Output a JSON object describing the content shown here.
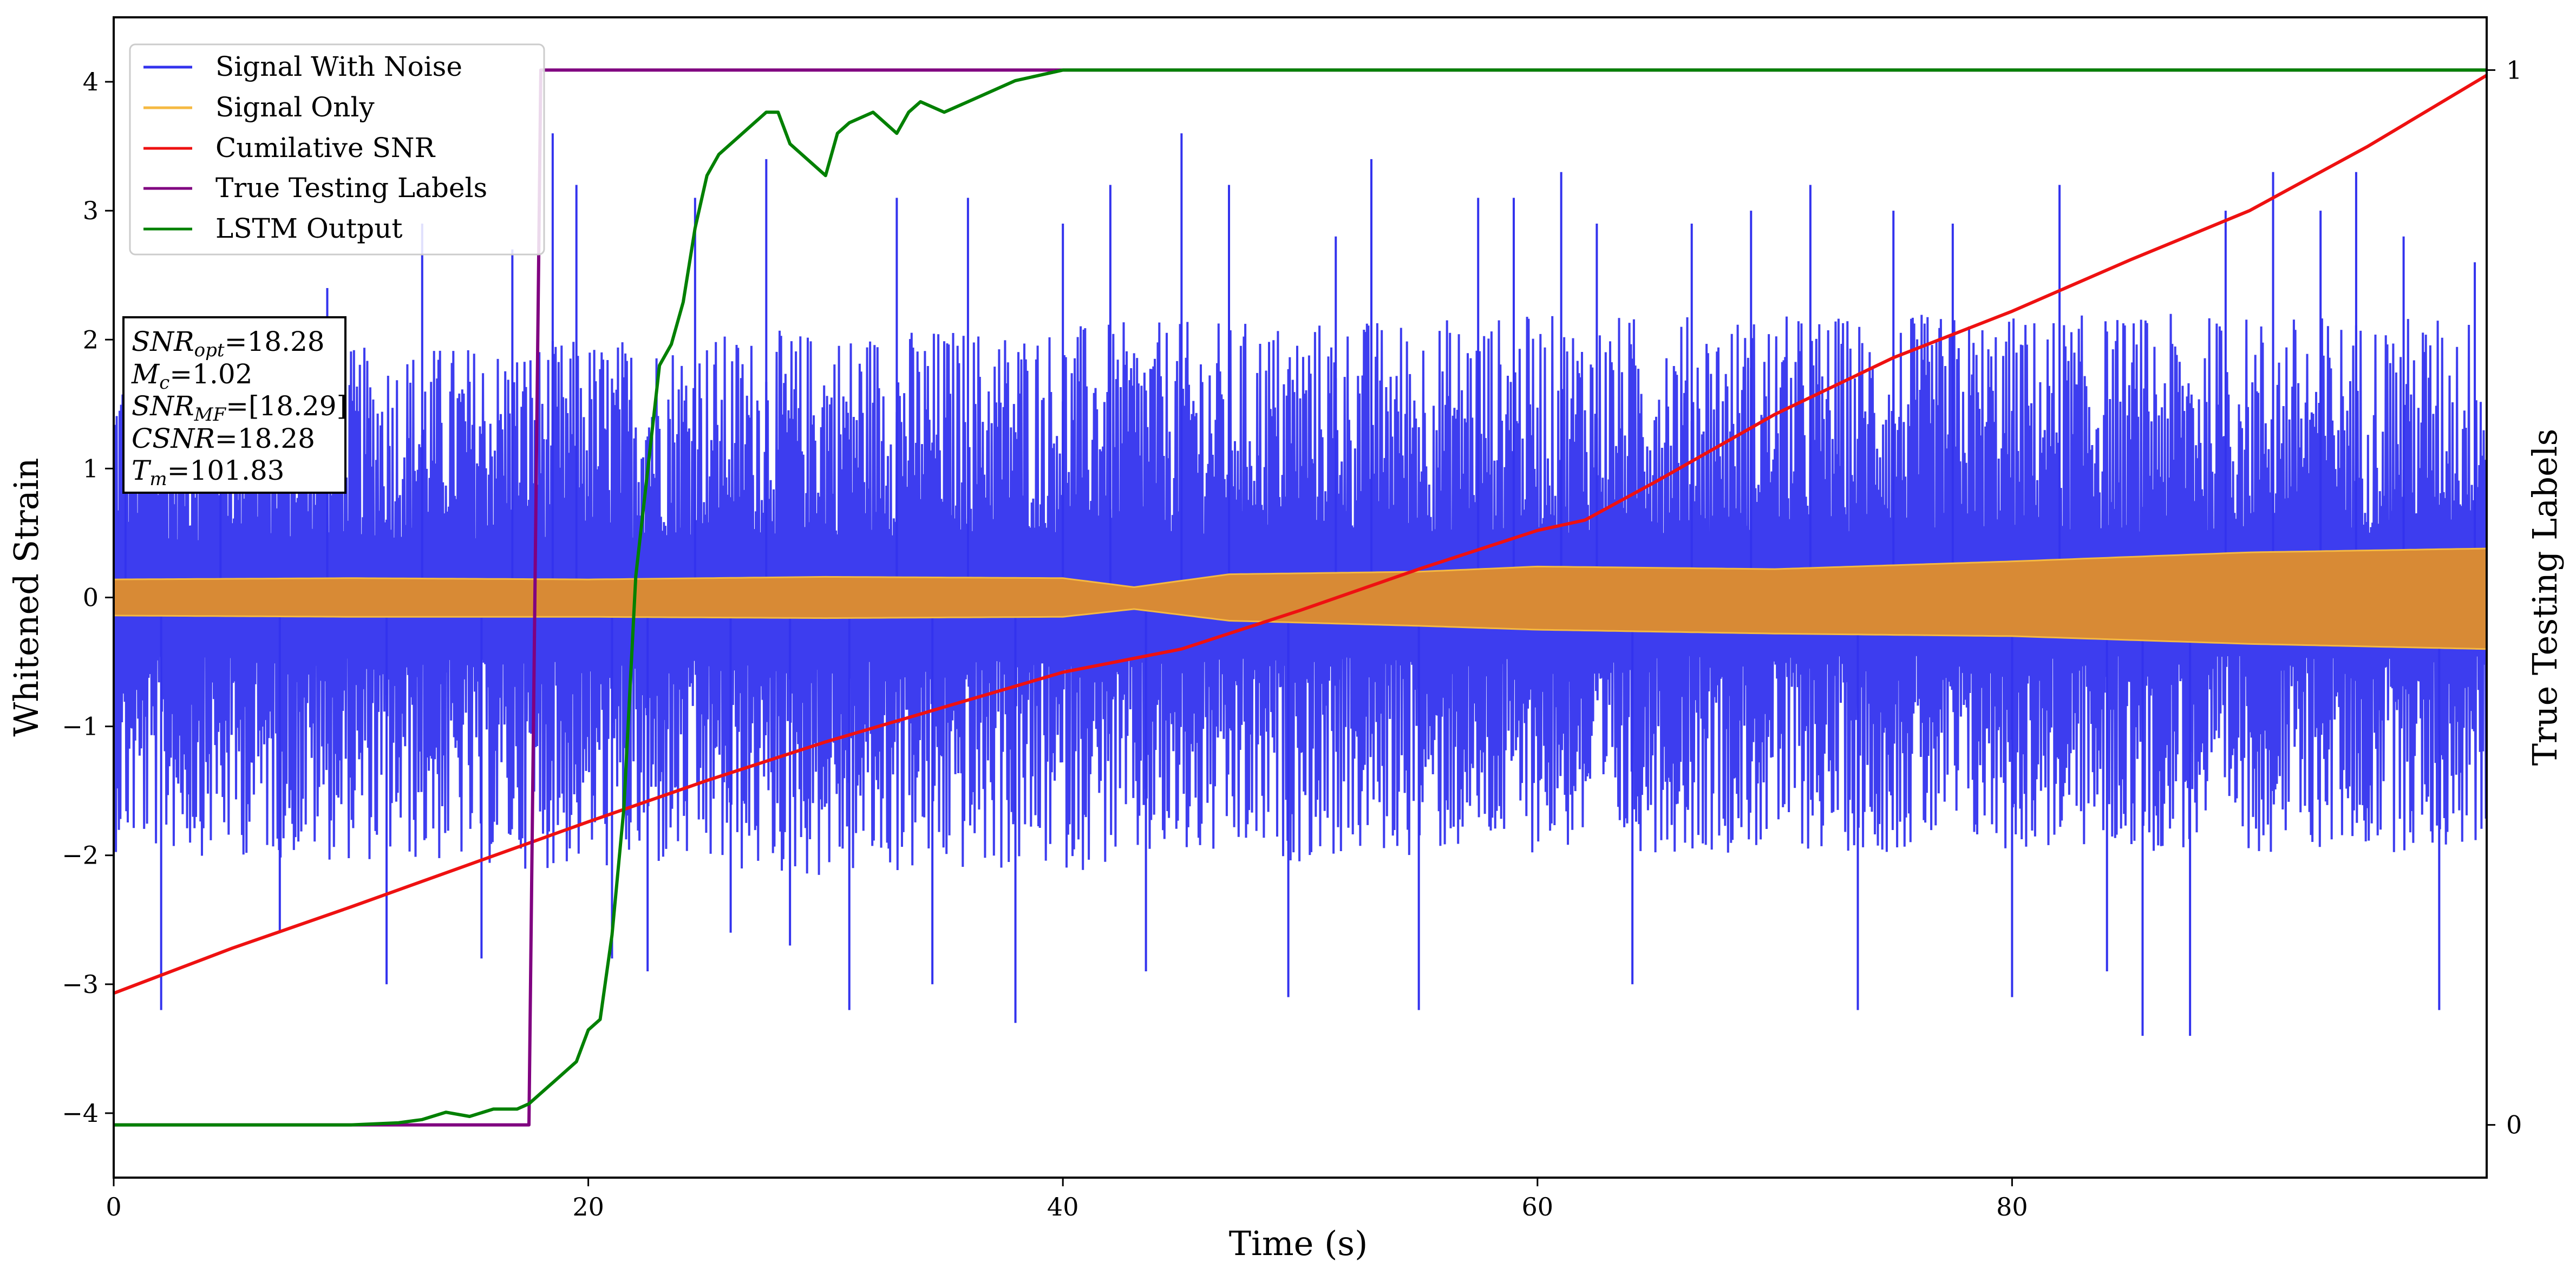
{
  "chart_data": {
    "type": "line",
    "xlabel": "Time (s)",
    "ylabel": "Whitened Strain",
    "y2label": "True Testing Labels",
    "xlim": [
      0,
      100
    ],
    "ylim": [
      -4.5,
      4.5
    ],
    "y2lim": [
      -0.05,
      1.05
    ],
    "xticks": [
      0,
      20,
      40,
      60,
      80
    ],
    "yticks": [
      -4,
      -3,
      -2,
      -1,
      0,
      1,
      2,
      3,
      4
    ],
    "y2ticks": [
      0,
      1
    ],
    "grid": false,
    "legend_position": "upper-left",
    "legend": [
      {
        "label": "Signal With Noise",
        "color": "#3333ee"
      },
      {
        "label": "Signal Only",
        "color": "#f5b942"
      },
      {
        "label": "Cumilative SNR",
        "color": "#ee1111"
      },
      {
        "label": "True Testing Labels",
        "color": "#800080"
      },
      {
        "label": "LSTM Output",
        "color": "#008000"
      }
    ],
    "info_box": {
      "snr_opt": "18.28",
      "mc": "1.02",
      "snr_mf": "[18.29]",
      "csnr": "18.28",
      "tm": "101.83"
    },
    "series": [
      {
        "name": "Signal With Noise",
        "axis": "left",
        "color": "#3333ee",
        "description_only": true,
        "envelope_typical_max": [
          [
            0,
            1.7
          ],
          [
            30,
            1.9
          ],
          [
            60,
            2.0
          ],
          [
            100,
            2.0
          ]
        ],
        "envelope_typical_min": [
          [
            0,
            -1.8
          ],
          [
            30,
            -2.0
          ],
          [
            60,
            -1.8
          ],
          [
            100,
            -1.8
          ]
        ],
        "peaks": [
          [
            0.5,
            1.7
          ],
          [
            2,
            -3.2
          ],
          [
            4.5,
            2.1
          ],
          [
            7,
            -2.6
          ],
          [
            9,
            2.4
          ],
          [
            11.5,
            -3.0
          ],
          [
            13,
            2.9
          ],
          [
            15.5,
            -2.8
          ],
          [
            16.8,
            2.7
          ],
          [
            18.5,
            3.6
          ],
          [
            19.5,
            3.2
          ],
          [
            21,
            -2.8
          ],
          [
            22.5,
            -2.9
          ],
          [
            24.5,
            3.1
          ],
          [
            26,
            -2.6
          ],
          [
            27.5,
            3.4
          ],
          [
            28.5,
            -2.7
          ],
          [
            31,
            -3.2
          ],
          [
            33,
            3.1
          ],
          [
            34.5,
            -3.0
          ],
          [
            36,
            3.1
          ],
          [
            38,
            -3.3
          ],
          [
            40,
            2.9
          ],
          [
            42,
            3.2
          ],
          [
            43.5,
            -2.9
          ],
          [
            45,
            3.6
          ],
          [
            47,
            3.2
          ],
          [
            49.5,
            -3.1
          ],
          [
            51.5,
            2.8
          ],
          [
            53,
            3.4
          ],
          [
            55,
            -3.2
          ],
          [
            57.5,
            3.1
          ],
          [
            59,
            3.1
          ],
          [
            61,
            3.3
          ],
          [
            62.5,
            2.9
          ],
          [
            64,
            -3.0
          ],
          [
            66.5,
            2.9
          ],
          [
            69,
            3.0
          ],
          [
            71.5,
            3.2
          ],
          [
            73.5,
            -3.2
          ],
          [
            75,
            3.0
          ],
          [
            77.5,
            2.9
          ],
          [
            80,
            -3.1
          ],
          [
            82,
            3.2
          ],
          [
            84,
            -2.9
          ],
          [
            85.5,
            -3.4
          ],
          [
            87.5,
            -3.4
          ],
          [
            89,
            3.0
          ],
          [
            91,
            3.3
          ],
          [
            93,
            3.0
          ],
          [
            94.5,
            3.3
          ],
          [
            96.5,
            2.8
          ],
          [
            98,
            -3.2
          ],
          [
            99.5,
            2.6
          ]
        ]
      },
      {
        "name": "Signal Only",
        "axis": "left",
        "color": "#f5b942",
        "description_only": true,
        "envelope_upper": [
          [
            0,
            0.14
          ],
          [
            10,
            0.15
          ],
          [
            20,
            0.14
          ],
          [
            30,
            0.16
          ],
          [
            40,
            0.15
          ],
          [
            43,
            0.08
          ],
          [
            47,
            0.18
          ],
          [
            55,
            0.2
          ],
          [
            60,
            0.24
          ],
          [
            70,
            0.22
          ],
          [
            80,
            0.28
          ],
          [
            90,
            0.35
          ],
          [
            100,
            0.38
          ]
        ],
        "envelope_lower": [
          [
            0,
            -0.14
          ],
          [
            10,
            -0.15
          ],
          [
            20,
            -0.15
          ],
          [
            30,
            -0.16
          ],
          [
            40,
            -0.15
          ],
          [
            43,
            -0.09
          ],
          [
            47,
            -0.18
          ],
          [
            55,
            -0.22
          ],
          [
            60,
            -0.25
          ],
          [
            70,
            -0.28
          ],
          [
            80,
            -0.3
          ],
          [
            90,
            -0.36
          ],
          [
            100,
            -0.4
          ]
        ]
      },
      {
        "name": "Cumilative SNR",
        "axis": "left",
        "color": "#ee1111",
        "x": [
          0,
          5,
          10,
          15,
          20,
          25,
          30,
          35,
          40,
          45,
          50,
          55,
          60,
          62,
          65,
          70,
          75,
          80,
          85,
          90,
          95,
          100
        ],
        "y": [
          -3.07,
          -2.72,
          -2.4,
          -2.07,
          -1.74,
          -1.42,
          -1.12,
          -0.85,
          -0.58,
          -0.4,
          -0.1,
          0.22,
          0.52,
          0.6,
          0.9,
          1.42,
          1.86,
          2.22,
          2.62,
          3.0,
          3.5,
          4.05
        ]
      },
      {
        "name": "True Testing Labels",
        "axis": "right",
        "color": "#800080",
        "x": [
          0,
          17.5,
          18,
          100
        ],
        "y": [
          0,
          0,
          1,
          1
        ]
      },
      {
        "name": "LSTM Output",
        "axis": "right",
        "color": "#008000",
        "x": [
          0,
          5,
          10,
          12,
          13,
          14,
          15,
          16,
          17,
          17.5,
          18,
          18.5,
          19,
          19.5,
          20,
          20.5,
          21,
          21.5,
          22,
          22.5,
          23,
          23.5,
          24,
          24.5,
          25,
          25.5,
          26,
          26.5,
          27,
          27.5,
          28,
          28.5,
          29,
          30,
          30.5,
          31,
          32,
          32.5,
          33,
          33.5,
          34,
          35,
          36,
          37,
          38,
          39,
          40,
          42,
          44,
          46,
          48,
          50,
          100
        ],
        "y": [
          0,
          0,
          0,
          0.002,
          0.005,
          0.012,
          0.008,
          0.015,
          0.015,
          0.02,
          0.03,
          0.04,
          0.05,
          0.06,
          0.09,
          0.1,
          0.18,
          0.3,
          0.52,
          0.62,
          0.72,
          0.74,
          0.78,
          0.85,
          0.9,
          0.92,
          0.93,
          0.94,
          0.95,
          0.96,
          0.96,
          0.93,
          0.92,
          0.9,
          0.94,
          0.95,
          0.96,
          0.95,
          0.94,
          0.96,
          0.97,
          0.96,
          0.97,
          0.98,
          0.99,
          0.995,
          1.0,
          1.0,
          1.0,
          1.0,
          1.0,
          1.0,
          1.0
        ]
      }
    ]
  }
}
